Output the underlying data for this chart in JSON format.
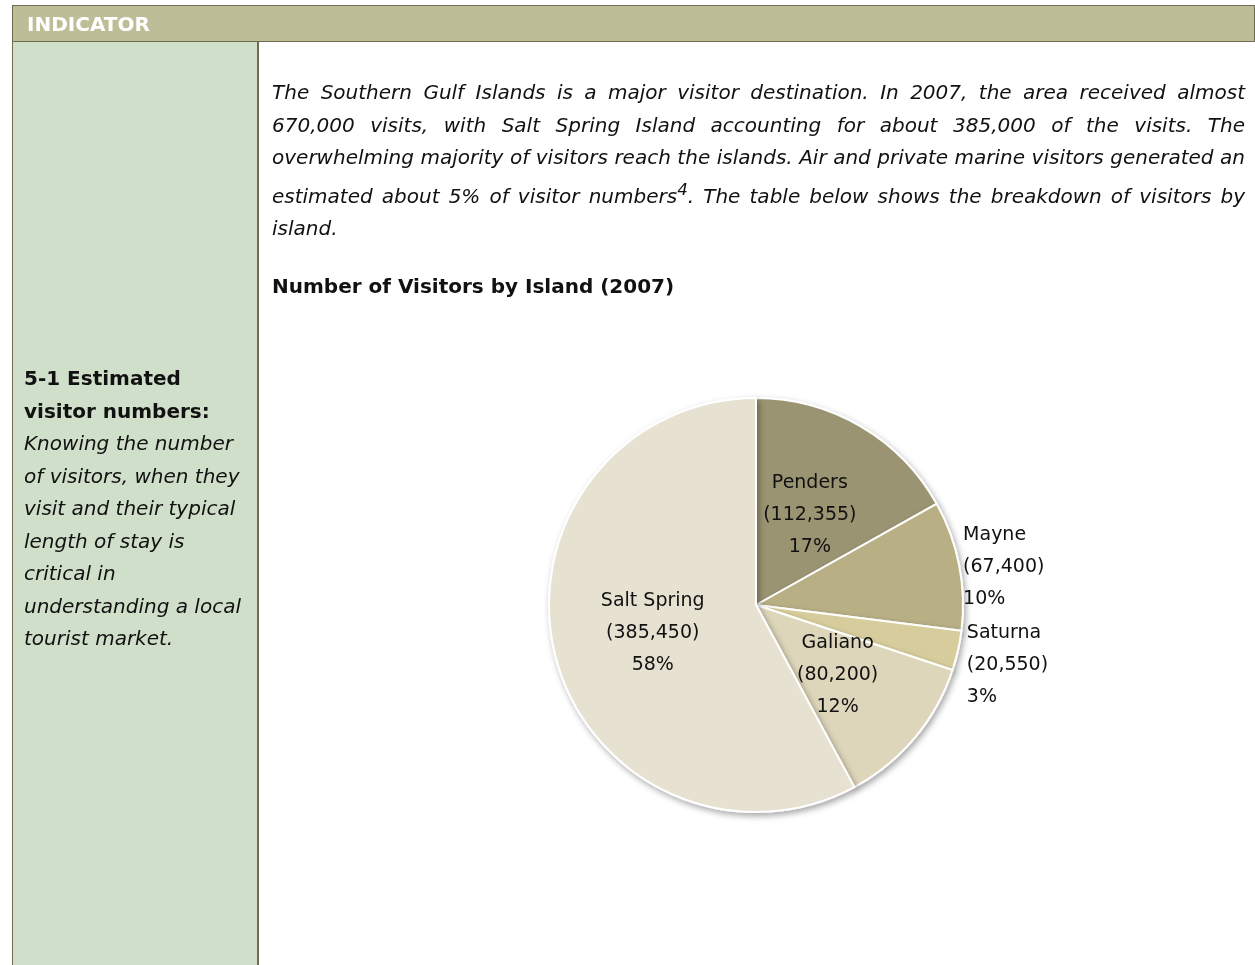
{
  "chart_data": {
    "type": "pie",
    "title": "Number of Visitors by Island (2007)",
    "categories": [
      "Penders",
      "Mayne",
      "Saturna",
      "Galiano",
      "Salt Spring"
    ],
    "values": [
      112355,
      67400,
      20550,
      80200,
      385450
    ],
    "colors": [
      "#9b9472",
      "#b8af85",
      "#d7cd9c",
      "#ded6ba",
      "#e6e1d1"
    ],
    "value_labels": [
      "(112,355)\n17%",
      "(67,400)\n10%",
      "(20,550)\n3%",
      "(80,200)\n12%",
      "(385,450)\n58%"
    ],
    "annotations": [
      "INDICATOR",
      "5-1 Estimated visitor numbers:",
      "Knowing the number of visitors, when they visit and their typical length of stay is critical in understanding a local tourist market.",
      "The Southern Gulf Islands is a major visitor destination. In 2007, the area received almost 670,000 visits, with Salt Spring Island accounting for about 385,000 of the visits. The overwhelming majority of visitors reach the islands. Air and private marine visitors generated an estimated about 5% of visitor numbers$^{4}$. The table below shows the breakdown of visitors by island."
    ],
    "legend": false
  }
}
